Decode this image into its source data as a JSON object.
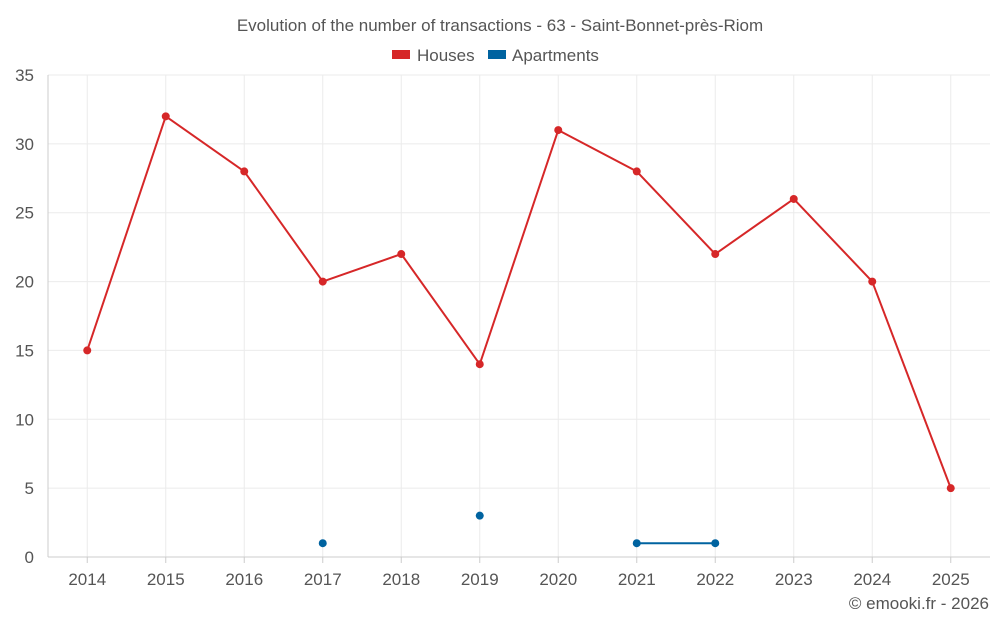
{
  "chart_data": {
    "type": "line",
    "title": "Evolution of the number of transactions - 63 - Saint-Bonnet-près-Riom",
    "categories": [
      "2014",
      "2015",
      "2016",
      "2017",
      "2018",
      "2019",
      "2020",
      "2021",
      "2022",
      "2023",
      "2024",
      "2025"
    ],
    "ylim": [
      0,
      35
    ],
    "yticks": [
      "0",
      "5",
      "10",
      "15",
      "20",
      "25",
      "30",
      "35"
    ],
    "grid": true,
    "legend_position": "top-center",
    "series": [
      {
        "name": "Houses",
        "color": "#d62728",
        "values": [
          15,
          32,
          28,
          20,
          22,
          14,
          31,
          28,
          22,
          26,
          20,
          5
        ]
      },
      {
        "name": "Apartments",
        "color": "#0063a0",
        "values": [
          null,
          null,
          null,
          1,
          null,
          3,
          null,
          1,
          1,
          null,
          null,
          null
        ]
      }
    ],
    "credit": "© emooki.fr - 2026"
  }
}
